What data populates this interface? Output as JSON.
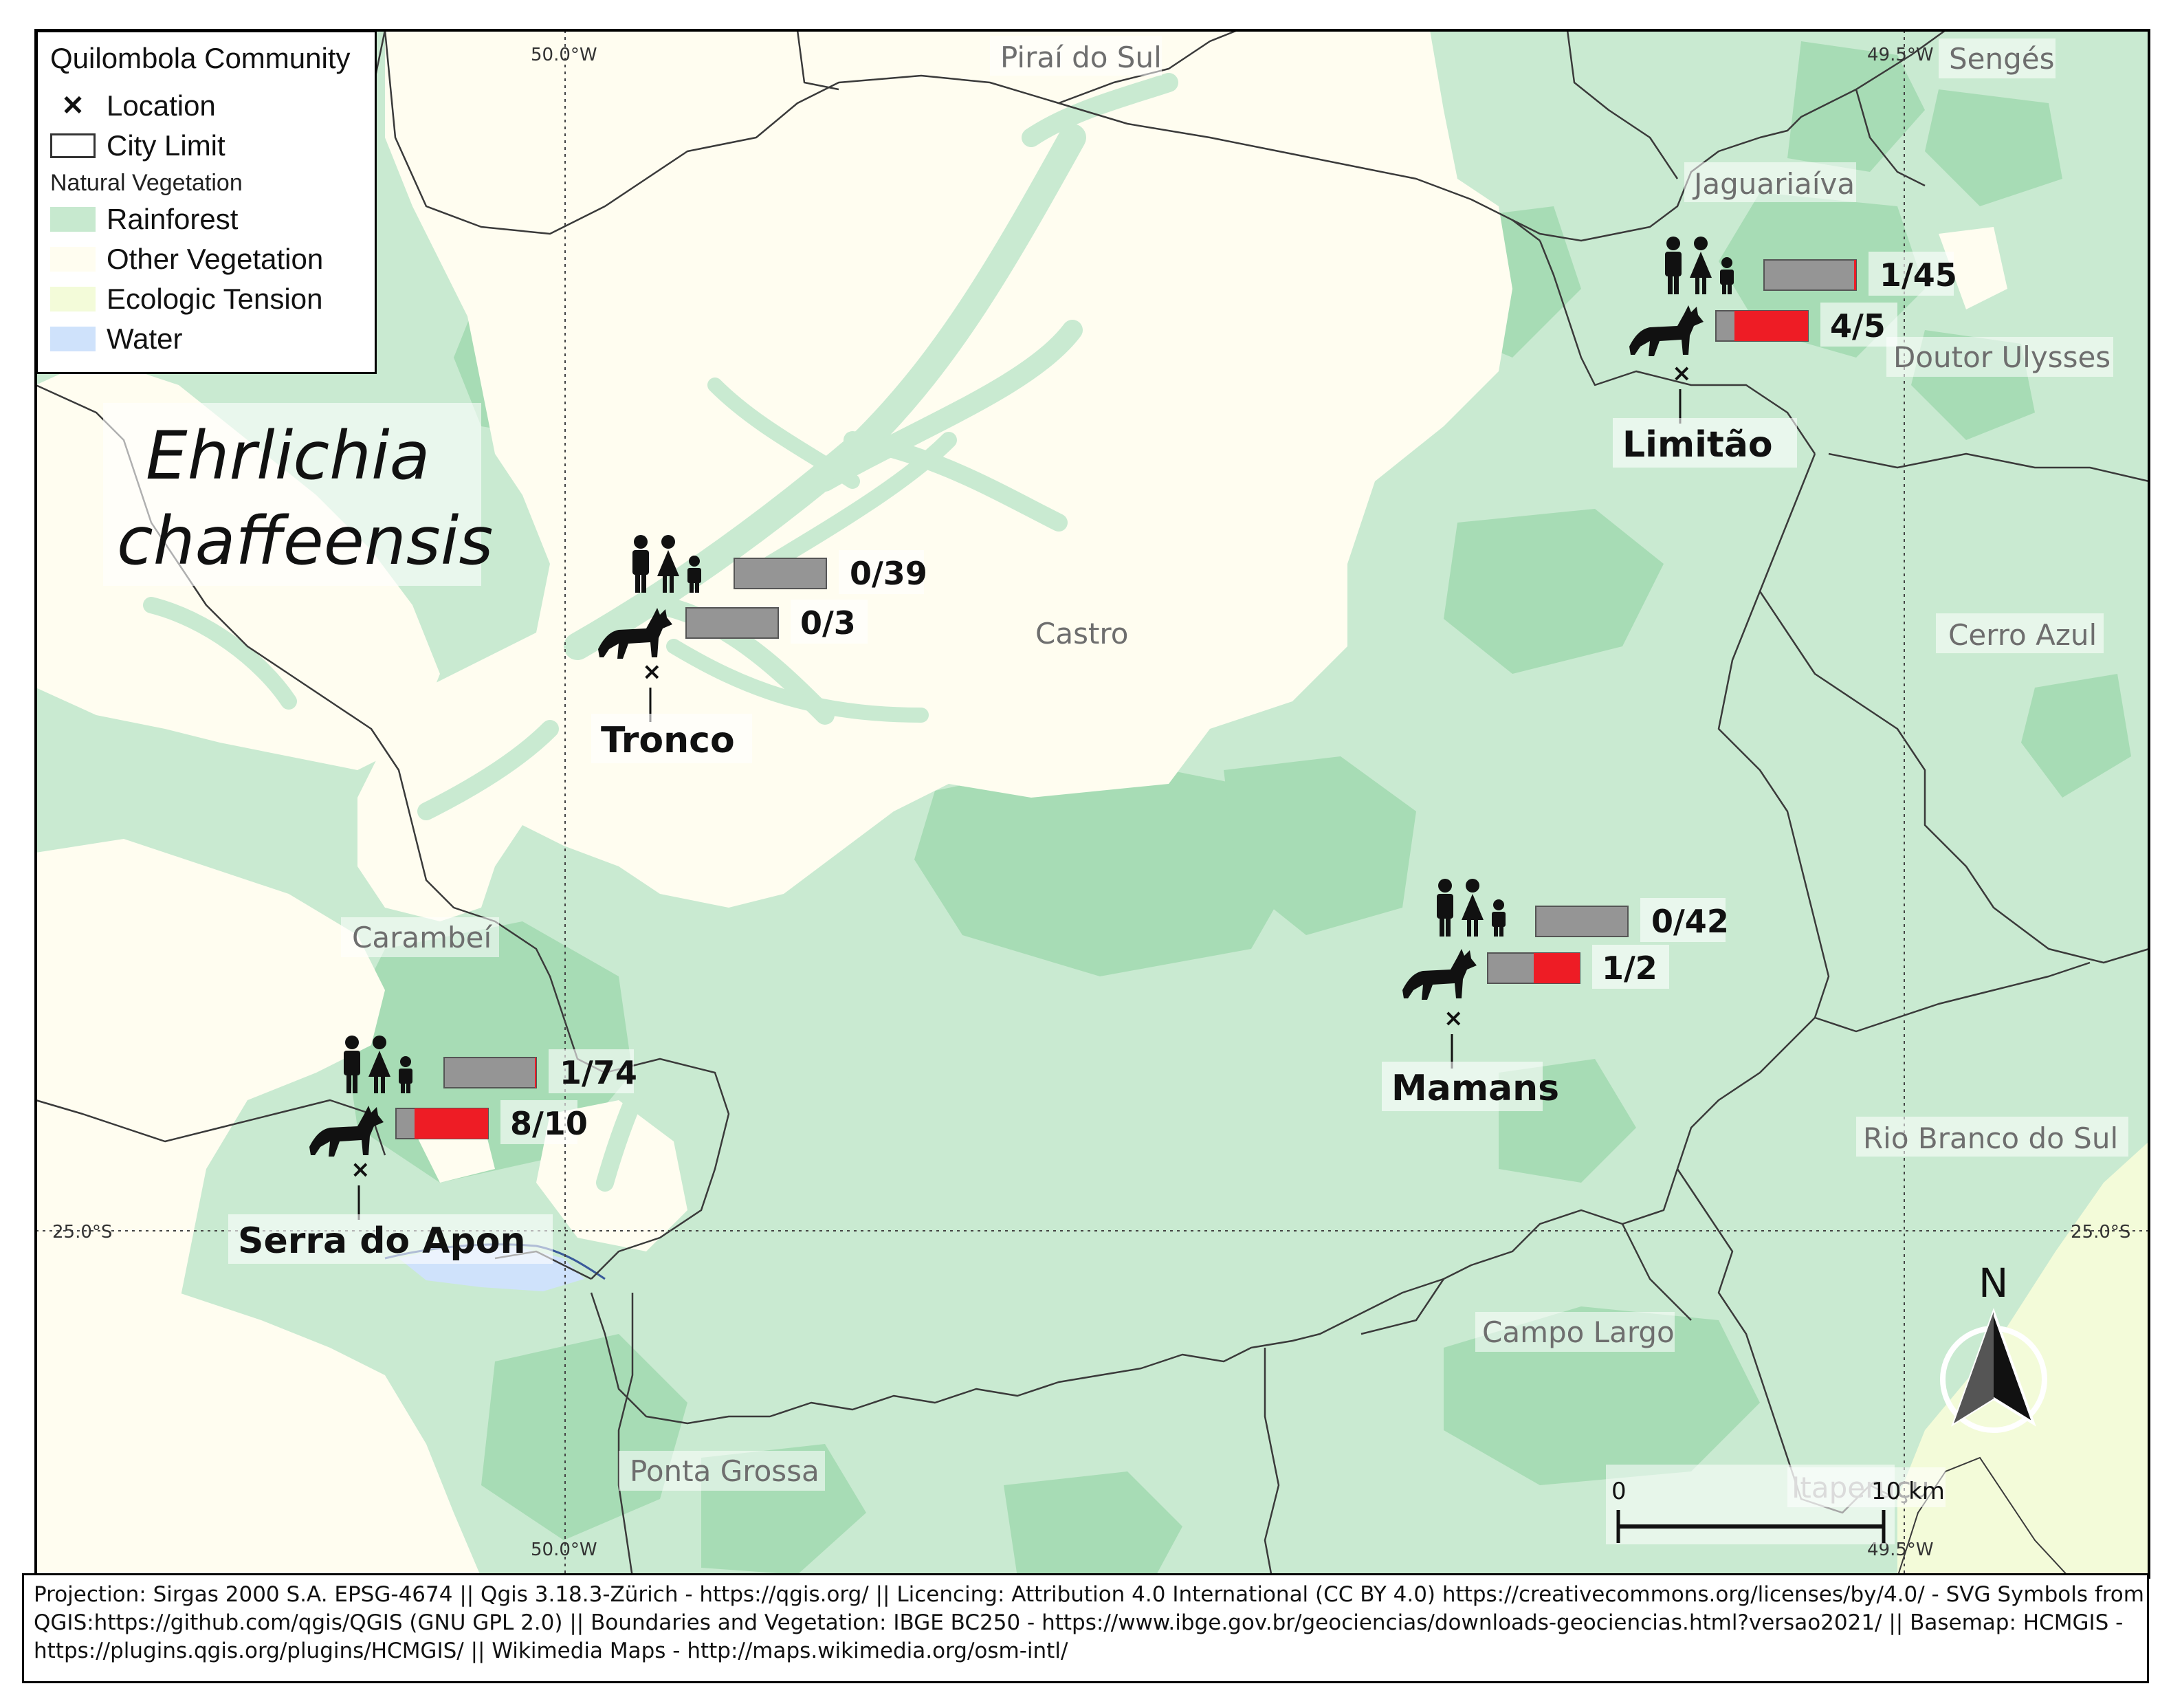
{
  "legend": {
    "title": "Quilombola Community",
    "location_label": "Location",
    "city_limit_label": "City Limit",
    "vegetation_heading": "Natural Vegetation",
    "items": [
      {
        "label": "Rainforest",
        "color": "#c7e9cf"
      },
      {
        "label": "Other Vegetation",
        "color": "#fffdf0"
      },
      {
        "label": "Ecologic Tension",
        "color": "#f3fbd9"
      },
      {
        "label": "Water",
        "color": "#cfe2fb"
      }
    ]
  },
  "map_title": {
    "line1": "Ehrlichia",
    "line2": "chaffeensis"
  },
  "cities": {
    "pirai_do_sul": "Piraí do Sul",
    "senges": "Sengés",
    "jaguariaiva": "Jaguariaíva",
    "doutor_ulysses": "Doutor Ulysses",
    "castro": "Castro",
    "cerro_azul": "Cerro Azul",
    "carambei": "Carambeí",
    "rio_branco_do_sul": "Rio Branco do Sul",
    "campo_largo": "Campo Largo",
    "ponta_grossa": "Ponta Grossa",
    "itaperucu": "Itaperuçu"
  },
  "graticule": {
    "lon_left": "50.0°W",
    "lon_right": "49.5°W",
    "lat": "25.0°S"
  },
  "communities": [
    {
      "name": "Tronco",
      "human": {
        "positive": 0,
        "total": 39,
        "label": "0/39"
      },
      "dog": {
        "positive": 0,
        "total": 3,
        "label": "0/3"
      }
    },
    {
      "name": "Limitão",
      "human": {
        "positive": 1,
        "total": 45,
        "label": "1/45"
      },
      "dog": {
        "positive": 4,
        "total": 5,
        "label": "4/5"
      }
    },
    {
      "name": "Mamans",
      "human": {
        "positive": 0,
        "total": 42,
        "label": "0/42"
      },
      "dog": {
        "positive": 1,
        "total": 2,
        "label": "1/2"
      }
    },
    {
      "name": "Serra do Apon",
      "human": {
        "positive": 1,
        "total": 74,
        "label": "1/74"
      },
      "dog": {
        "positive": 8,
        "total": 10,
        "label": "8/10"
      }
    }
  ],
  "scale_bar": {
    "start": "0",
    "end": "10 km"
  },
  "north_arrow": {
    "label": "N"
  },
  "colors": {
    "positive": "#ee1c25",
    "negative": "#959595",
    "boundary": "#3a3a3a"
  },
  "footer": {
    "line1": "Projection: Sirgas 2000 S.A. EPSG-4674 || Qgis 3.18.3-Zürich - https://qgis.org/  || Licencing: Attribution 4.0 International (CC BY 4.0)  https://creativecommons.org/licenses/by/4.0/ - SVG Symbols from",
    "line2": "QGIS:https://github.com/qgis/QGIS (GNU GPL 2.0)  ||  Boundaries and Vegetation: IBGE BC250 - https://www.ibge.gov.br/geociencias/downloads-geociencias.html?versao2021/  ||  Basemap: HCMGIS -",
    "line3": "https://plugins.qgis.org/plugins/HCMGIS/  ||  Wikimedia Maps - http://maps.wikimedia.org/osm-intl/"
  }
}
